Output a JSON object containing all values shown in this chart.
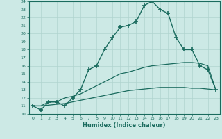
{
  "xlabel": "Humidex (Indice chaleur)",
  "bg_color": "#cce9e5",
  "line_color": "#1a6b5e",
  "grid_color": "#b0d4cf",
  "xlim": [
    -0.5,
    23.5
  ],
  "ylim": [
    10,
    24
  ],
  "yticks": [
    10,
    11,
    12,
    13,
    14,
    15,
    16,
    17,
    18,
    19,
    20,
    21,
    22,
    23,
    24
  ],
  "xticks": [
    0,
    1,
    2,
    3,
    4,
    5,
    6,
    7,
    8,
    9,
    10,
    11,
    12,
    13,
    14,
    15,
    16,
    17,
    18,
    19,
    20,
    21,
    22,
    23
  ],
  "series": [
    {
      "x": [
        0,
        1,
        2,
        3,
        4,
        5,
        6,
        7,
        8,
        9,
        10,
        11,
        12,
        13,
        14,
        15,
        16,
        17,
        18,
        19,
        20,
        21,
        22,
        23
      ],
      "y": [
        11,
        10.5,
        11.5,
        11.5,
        11,
        12,
        13,
        15.5,
        16,
        18,
        19.5,
        20.8,
        21,
        21.5,
        23.5,
        24,
        23,
        22.5,
        19.5,
        18,
        18,
        16,
        15.5,
        13
      ],
      "marker": "+",
      "markersize": 4,
      "linewidth": 1.0
    },
    {
      "x": [
        0,
        1,
        2,
        3,
        4,
        5,
        6,
        7,
        8,
        9,
        10,
        11,
        12,
        13,
        14,
        15,
        16,
        17,
        18,
        19,
        20,
        21,
        22,
        23
      ],
      "y": [
        11,
        11,
        11.5,
        11.5,
        12,
        12.2,
        12.5,
        13,
        13.5,
        14,
        14.5,
        15,
        15.2,
        15.5,
        15.8,
        16,
        16.1,
        16.2,
        16.3,
        16.4,
        16.4,
        16.3,
        16.0,
        13
      ],
      "marker": null,
      "markersize": 0,
      "linewidth": 0.9
    },
    {
      "x": [
        0,
        1,
        2,
        3,
        4,
        5,
        6,
        7,
        8,
        9,
        10,
        11,
        12,
        13,
        14,
        15,
        16,
        17,
        18,
        19,
        20,
        21,
        22,
        23
      ],
      "y": [
        11,
        11,
        11.1,
        11.2,
        11.3,
        11.5,
        11.7,
        11.9,
        12.1,
        12.3,
        12.5,
        12.7,
        12.9,
        13.0,
        13.1,
        13.2,
        13.3,
        13.3,
        13.3,
        13.3,
        13.2,
        13.2,
        13.1,
        13.0
      ],
      "marker": null,
      "markersize": 0,
      "linewidth": 0.9
    }
  ]
}
